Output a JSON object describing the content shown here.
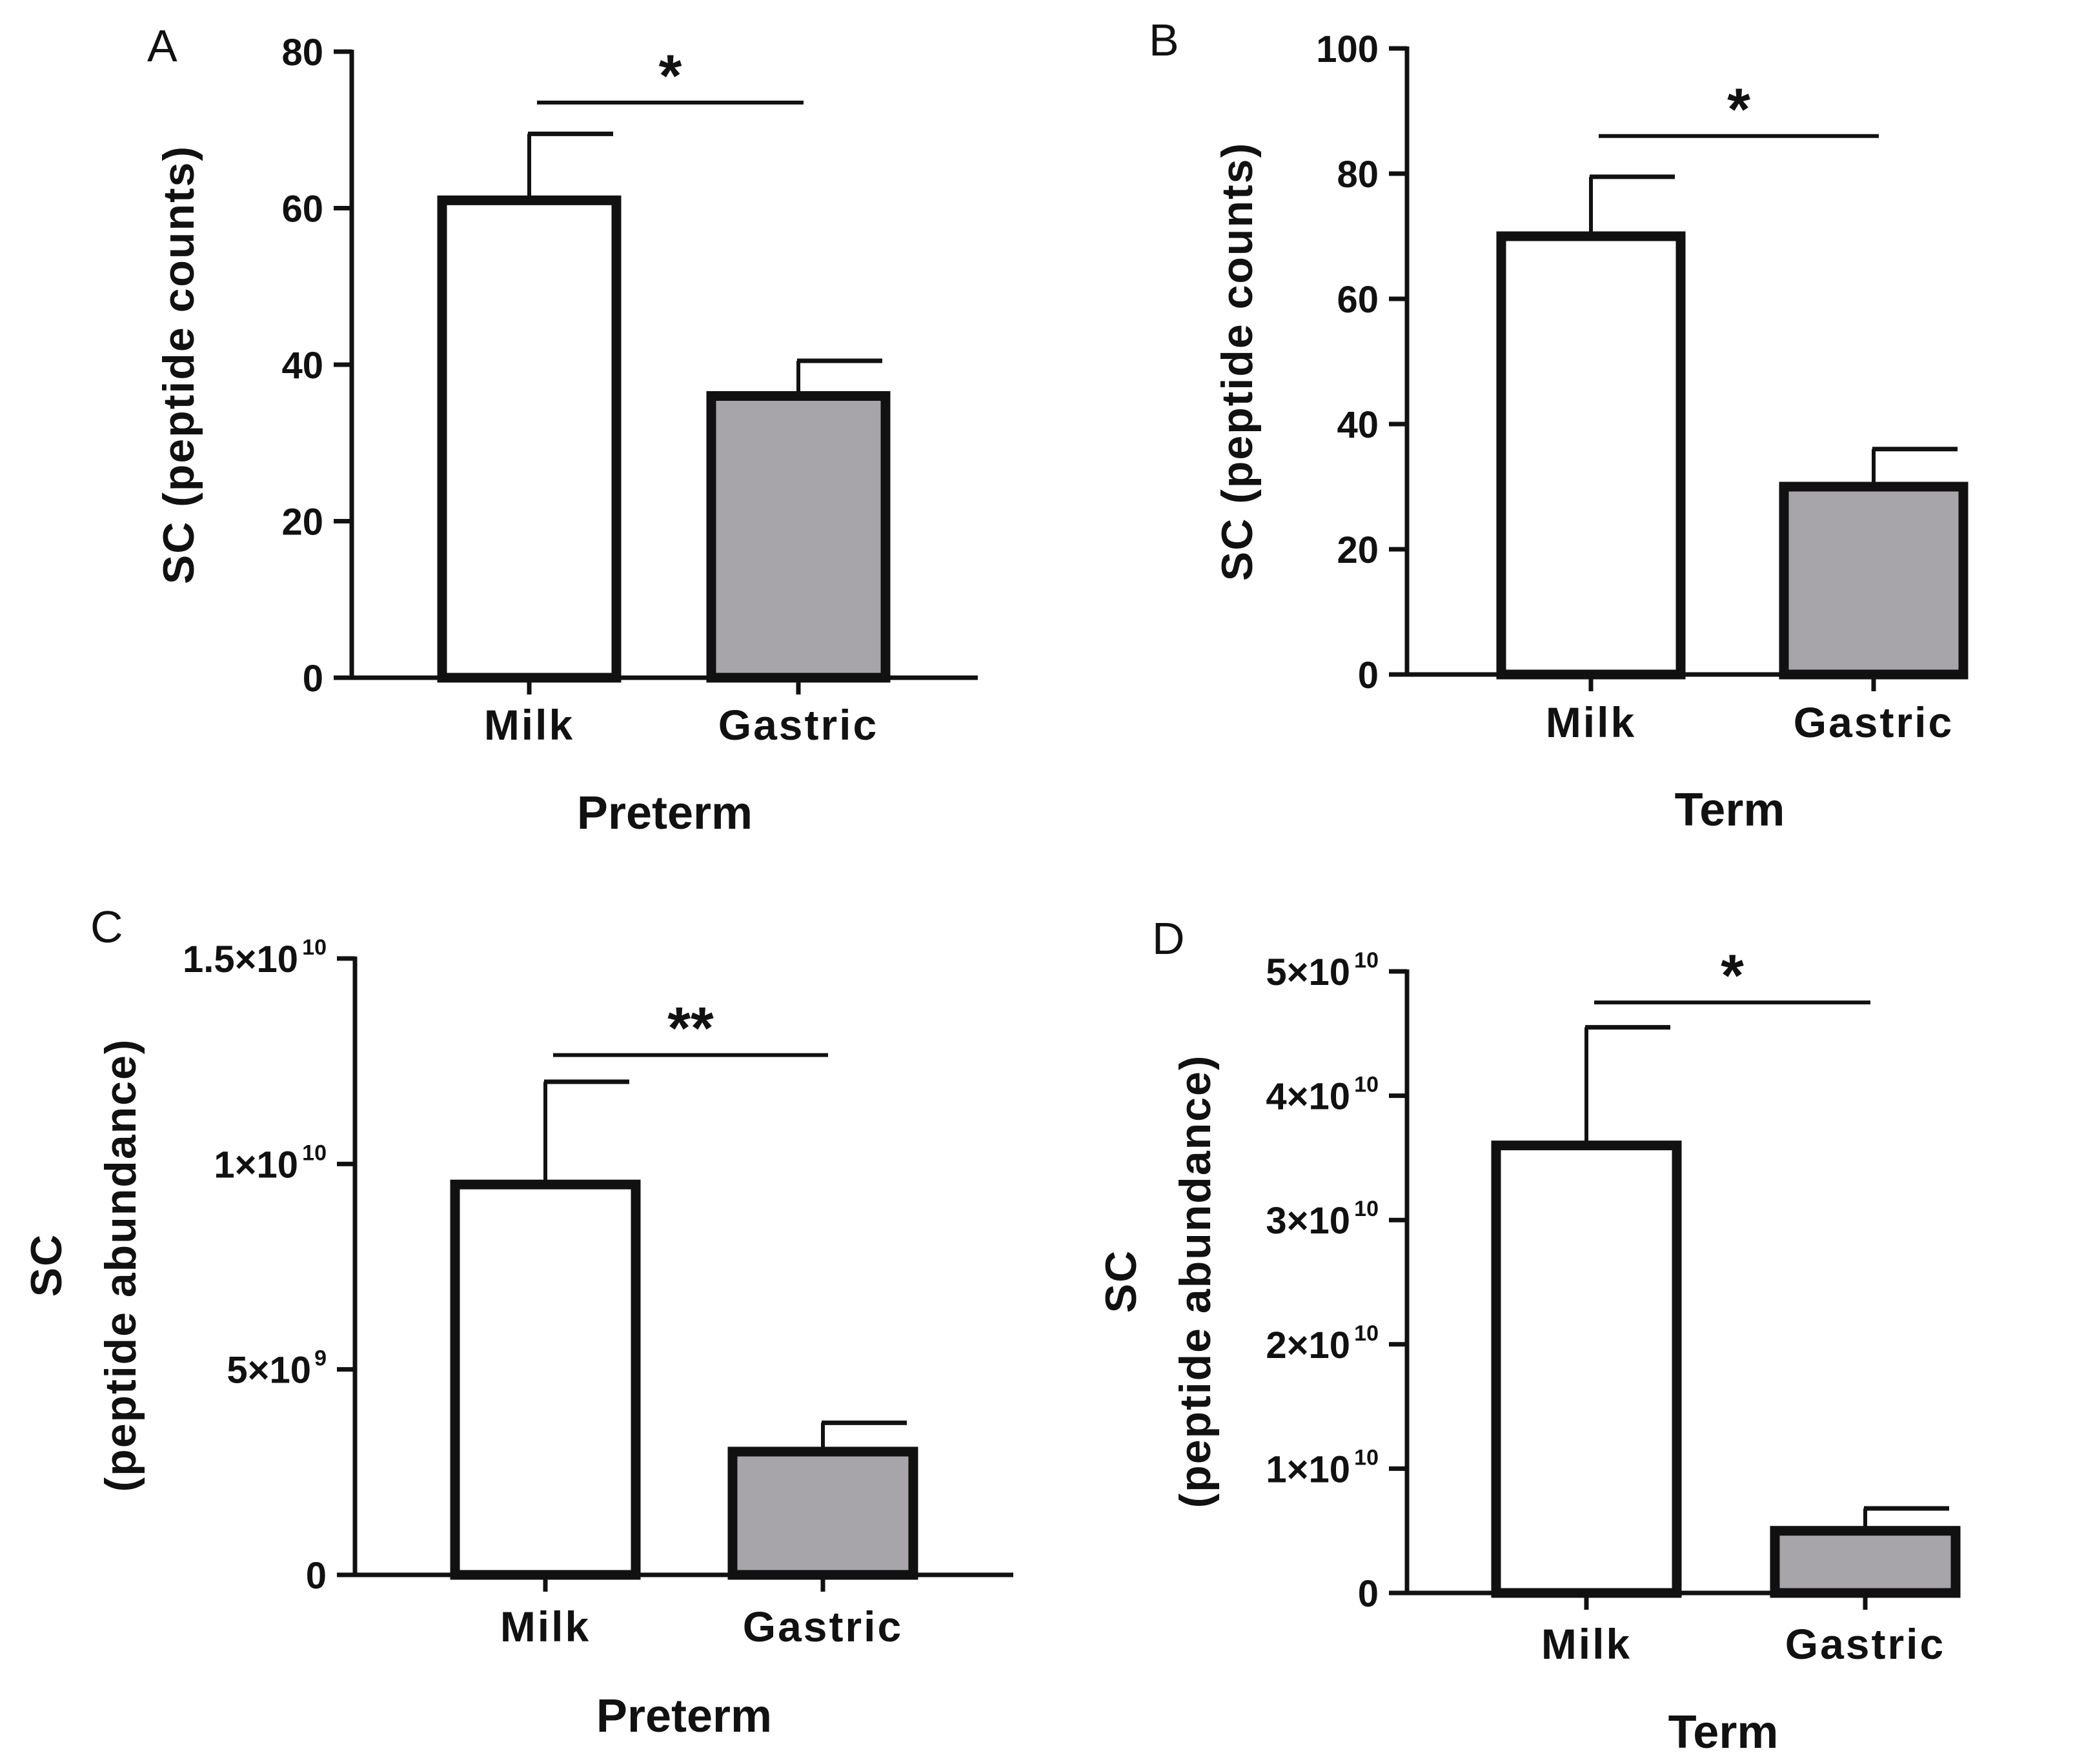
{
  "chart_data": [
    {
      "panel": "A",
      "type": "bar",
      "categories": [
        "Milk",
        "Gastric"
      ],
      "values": [
        61,
        36
      ],
      "errors": [
        8.5,
        4.5
      ],
      "bar_colors": [
        "#ffffff",
        "#a7a5aa"
      ],
      "ylabel": "SC (peptide counts)",
      "ylabel_lines": [
        "SC (peptide counts)"
      ],
      "xlabel": "Preterm",
      "ylim": [
        0,
        80
      ],
      "ticks": [
        {
          "value": 0,
          "label": "0",
          "sup": ""
        },
        {
          "value": 20,
          "label": "20",
          "sup": ""
        },
        {
          "value": 40,
          "label": "40",
          "sup": ""
        },
        {
          "value": 60,
          "label": "60",
          "sup": ""
        },
        {
          "value": 80,
          "label": "80",
          "sup": ""
        }
      ],
      "significance": {
        "label": "*",
        "y": 73.5
      }
    },
    {
      "panel": "B",
      "type": "bar",
      "categories": [
        "Milk",
        "Gastric"
      ],
      "values": [
        70,
        30
      ],
      "errors": [
        9.5,
        6
      ],
      "bar_colors": [
        "#ffffff",
        "#a7a5aa"
      ],
      "ylabel": "SC (peptide counts)",
      "ylabel_lines": [
        "SC (peptide counts)"
      ],
      "xlabel": "Term",
      "ylim": [
        0,
        100
      ],
      "ticks": [
        {
          "value": 0,
          "label": "0",
          "sup": ""
        },
        {
          "value": 20,
          "label": "20",
          "sup": ""
        },
        {
          "value": 40,
          "label": "40",
          "sup": ""
        },
        {
          "value": 60,
          "label": "60",
          "sup": ""
        },
        {
          "value": 80,
          "label": "80",
          "sup": ""
        },
        {
          "value": 100,
          "label": "100",
          "sup": ""
        }
      ],
      "significance": {
        "label": "*",
        "y": 86
      }
    },
    {
      "panel": "C",
      "type": "bar",
      "categories": [
        "Milk",
        "Gastric"
      ],
      "values": [
        9500000000,
        3000000000
      ],
      "errors": [
        2500000000,
        700000000
      ],
      "bar_colors": [
        "#ffffff",
        "#a7a5aa"
      ],
      "ylabel": "SC (peptide abundance)",
      "ylabel_lines": [
        "SC",
        "(peptide abundance)"
      ],
      "xlabel": "Preterm",
      "ylim": [
        0,
        15000000000
      ],
      "ticks": [
        {
          "value": 0,
          "label": "0",
          "sup": ""
        },
        {
          "value": 5000000000,
          "label": "5×10",
          "sup": "9"
        },
        {
          "value": 10000000000,
          "label": "1×10",
          "sup": "10"
        },
        {
          "value": 15000000000,
          "label": "1.5×10",
          "sup": "10"
        }
      ],
      "significance": {
        "label": "**",
        "y": 12650000000
      }
    },
    {
      "panel": "D",
      "type": "bar",
      "categories": [
        "Milk",
        "Gastric"
      ],
      "values": [
        36000000000,
        5000000000
      ],
      "errors": [
        9500000000,
        1800000000
      ],
      "bar_colors": [
        "#ffffff",
        "#a7a5aa"
      ],
      "ylabel": "SC (peptide abundance)",
      "ylabel_lines": [
        "SC",
        "(peptide abundance)"
      ],
      "xlabel": "Term",
      "ylim": [
        0,
        50000000000
      ],
      "ticks": [
        {
          "value": 0,
          "label": "0",
          "sup": ""
        },
        {
          "value": 10000000000,
          "label": "1×10",
          "sup": "10"
        },
        {
          "value": 20000000000,
          "label": "2×10",
          "sup": "10"
        },
        {
          "value": 30000000000,
          "label": "3×10",
          "sup": "10"
        },
        {
          "value": 40000000000,
          "label": "4×10",
          "sup": "10"
        },
        {
          "value": 50000000000,
          "label": "5×10",
          "sup": "10"
        }
      ],
      "significance": {
        "label": "*",
        "y": 47500000000
      }
    }
  ]
}
